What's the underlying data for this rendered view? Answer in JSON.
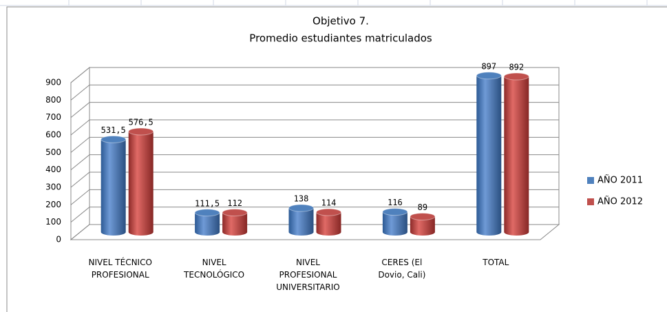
{
  "chart_data": {
    "type": "bar3d",
    "title": "Objetivo 7.",
    "subtitle": "Promedio estudiantes matriculados",
    "categories": [
      "NIVEL TÉCNICO PROFESIONAL",
      "NIVEL TECNOLÓGICO",
      "NIVEL PROFESIONAL UNIVERSITARIO",
      "CERES (El Dovio, Cali)",
      "TOTAL"
    ],
    "series": [
      {
        "name": "AÑO 2011",
        "color": "#4f81bd",
        "values": [
          531.5,
          111.5,
          138,
          116,
          897
        ],
        "value_labels": [
          "531,5",
          "111,5",
          "138",
          "116",
          "897"
        ]
      },
      {
        "name": "AÑO 2012",
        "color": "#c0504d",
        "values": [
          576.5,
          112,
          114,
          89,
          892
        ],
        "value_labels": [
          "576,5",
          "112",
          "114",
          "89",
          "892"
        ]
      }
    ],
    "ylim": [
      0,
      900
    ],
    "yticks": [
      0,
      100,
      200,
      300,
      400,
      500,
      600,
      700,
      800,
      900
    ],
    "grid": true,
    "legend": "right"
  }
}
